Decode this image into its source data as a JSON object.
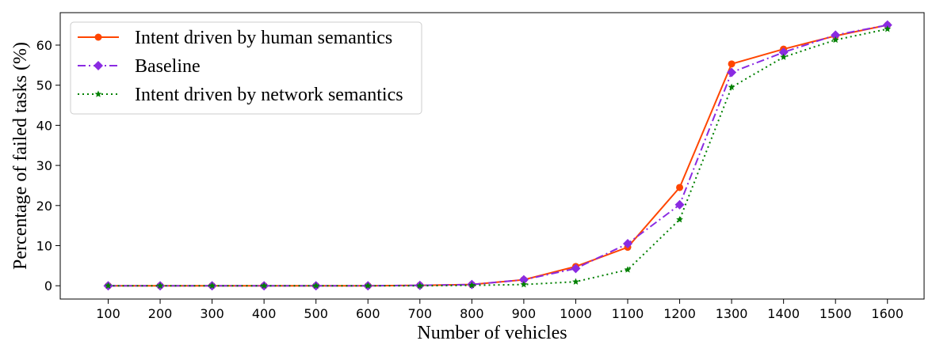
{
  "chart_data": {
    "type": "line",
    "title": "",
    "xlabel": "Number of vehicles",
    "ylabel": "Percentage of failed tasks (%)",
    "x": [
      100,
      200,
      300,
      400,
      500,
      600,
      700,
      800,
      900,
      1000,
      1100,
      1200,
      1300,
      1400,
      1500,
      1600
    ],
    "xticks": [
      "100",
      "200",
      "300",
      "400",
      "500",
      "600",
      "700",
      "800",
      "900",
      "1000",
      "1100",
      "1200",
      "1300",
      "1400",
      "1500",
      "1600"
    ],
    "yticks": [
      "0",
      "10",
      "20",
      "30",
      "40",
      "50",
      "60"
    ],
    "ylim": [
      -3.2,
      68.4
    ],
    "grid": false,
    "legend_position": "top-left",
    "series": [
      {
        "name": "Intent driven by human semantics",
        "color": "#ff4500",
        "line_style": "solid",
        "marker": "circle",
        "values": [
          0,
          0,
          0,
          0,
          0,
          0,
          0.1,
          0.3,
          1.5,
          4.8,
          9.6,
          24.5,
          55.3,
          59.0,
          62.3,
          65.0
        ]
      },
      {
        "name": "Baseline",
        "color": "#8a2be2",
        "line_style": "dashdot",
        "marker": "diamond",
        "values": [
          0,
          0,
          0,
          0,
          0,
          0,
          0.1,
          0.3,
          1.5,
          4.3,
          10.5,
          20.2,
          53.2,
          58.2,
          62.5,
          65.0
        ]
      },
      {
        "name": "Intent driven by network semantics",
        "color": "#008000",
        "line_style": "dotted",
        "marker": "star",
        "values": [
          0,
          0,
          0,
          0,
          0,
          0,
          0,
          0.1,
          0.3,
          1.0,
          4.0,
          16.5,
          49.5,
          57.0,
          61.3,
          64.0
        ]
      }
    ]
  }
}
